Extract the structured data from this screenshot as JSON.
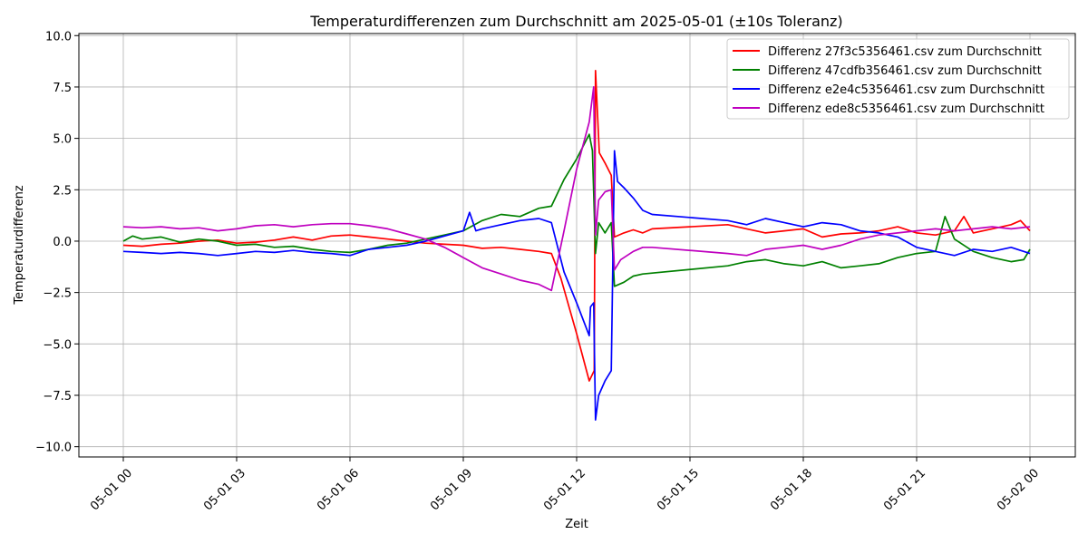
{
  "chart_data": {
    "type": "line",
    "title": "Temperaturdifferenzen zum Durchschnitt am 2025-05-01 (±10s Toleranz)",
    "xlabel": "Zeit",
    "ylabel": "Temperaturdifferenz",
    "xlim": [
      "2025-05-01 00:00",
      "2025-05-02 00:00"
    ],
    "ylim": [
      -10.5,
      10.1
    ],
    "x_ticks": [
      {
        "value": "2025-05-01 00:00",
        "label": "05-01 00"
      },
      {
        "value": "2025-05-01 03:00",
        "label": "05-01 03"
      },
      {
        "value": "2025-05-01 06:00",
        "label": "05-01 06"
      },
      {
        "value": "2025-05-01 09:00",
        "label": "05-01 09"
      },
      {
        "value": "2025-05-01 12:00",
        "label": "05-01 12"
      },
      {
        "value": "2025-05-01 15:00",
        "label": "05-01 15"
      },
      {
        "value": "2025-05-01 18:00",
        "label": "05-01 18"
      },
      {
        "value": "2025-05-01 21:00",
        "label": "05-01 21"
      },
      {
        "value": "2025-05-02 00:00",
        "label": "05-02 00"
      }
    ],
    "y_ticks": [
      {
        "value": -10.0,
        "label": "−10.0"
      },
      {
        "value": -7.5,
        "label": "−7.5"
      },
      {
        "value": -5.0,
        "label": "−5.0"
      },
      {
        "value": -2.5,
        "label": "−2.5"
      },
      {
        "value": 0.0,
        "label": "0.0"
      },
      {
        "value": 2.5,
        "label": "2.5"
      },
      {
        "value": 5.0,
        "label": "5.0"
      },
      {
        "value": 7.5,
        "label": "7.5"
      },
      {
        "value": 10.0,
        "label": "10.0"
      }
    ],
    "grid": true,
    "legend_position": "top-right",
    "series": [
      {
        "name": "Differenz 27f3c5356461.csv zum Durchschnitt",
        "color": "#ff0000",
        "points": [
          [
            "2025-05-01 00:00",
            -0.2
          ],
          [
            "2025-05-01 00:30",
            -0.25
          ],
          [
            "2025-05-01 01:00",
            -0.15
          ],
          [
            "2025-05-01 01:30",
            -0.1
          ],
          [
            "2025-05-01 02:00",
            0.0
          ],
          [
            "2025-05-01 02:30",
            0.05
          ],
          [
            "2025-05-01 03:00",
            -0.1
          ],
          [
            "2025-05-01 03:30",
            -0.05
          ],
          [
            "2025-05-01 04:00",
            0.05
          ],
          [
            "2025-05-01 04:30",
            0.2
          ],
          [
            "2025-05-01 05:00",
            0.05
          ],
          [
            "2025-05-01 05:30",
            0.25
          ],
          [
            "2025-05-01 06:00",
            0.3
          ],
          [
            "2025-05-01 06:30",
            0.2
          ],
          [
            "2025-05-01 07:00",
            0.1
          ],
          [
            "2025-05-01 07:30",
            0.0
          ],
          [
            "2025-05-01 08:00",
            -0.1
          ],
          [
            "2025-05-01 08:30",
            -0.15
          ],
          [
            "2025-05-01 09:00",
            -0.2
          ],
          [
            "2025-05-01 09:30",
            -0.35
          ],
          [
            "2025-05-01 10:00",
            -0.3
          ],
          [
            "2025-05-01 10:30",
            -0.4
          ],
          [
            "2025-05-01 11:00",
            -0.5
          ],
          [
            "2025-05-01 11:20",
            -0.6
          ],
          [
            "2025-05-01 11:35",
            -1.8
          ],
          [
            "2025-05-01 12:00",
            -4.5
          ],
          [
            "2025-05-01 12:20",
            -6.8
          ],
          [
            "2025-05-01 12:28",
            -6.3
          ],
          [
            "2025-05-01 12:30",
            8.3
          ],
          [
            "2025-05-01 12:36",
            4.3
          ],
          [
            "2025-05-01 12:45",
            3.8
          ],
          [
            "2025-05-01 12:55",
            3.2
          ],
          [
            "2025-05-01 13:00",
            0.2
          ],
          [
            "2025-05-01 13:15",
            0.4
          ],
          [
            "2025-05-01 13:30",
            0.55
          ],
          [
            "2025-05-01 13:45",
            0.4
          ],
          [
            "2025-05-01 14:00",
            0.6
          ],
          [
            "2025-05-01 16:00",
            0.8
          ],
          [
            "2025-05-01 16:30",
            0.6
          ],
          [
            "2025-05-01 17:00",
            0.4
          ],
          [
            "2025-05-01 17:30",
            0.5
          ],
          [
            "2025-05-01 18:00",
            0.6
          ],
          [
            "2025-05-01 18:30",
            0.2
          ],
          [
            "2025-05-01 19:00",
            0.35
          ],
          [
            "2025-05-01 19:30",
            0.4
          ],
          [
            "2025-05-01 20:00",
            0.5
          ],
          [
            "2025-05-01 20:30",
            0.7
          ],
          [
            "2025-05-01 21:00",
            0.4
          ],
          [
            "2025-05-01 21:30",
            0.3
          ],
          [
            "2025-05-01 22:00",
            0.5
          ],
          [
            "2025-05-01 22:15",
            1.2
          ],
          [
            "2025-05-01 22:30",
            0.4
          ],
          [
            "2025-05-01 23:00",
            0.6
          ],
          [
            "2025-05-01 23:30",
            0.8
          ],
          [
            "2025-05-01 23:45",
            1.0
          ],
          [
            "2025-05-02 00:00",
            0.5
          ]
        ]
      },
      {
        "name": "Differenz 47cdfb356461.csv zum Durchschnitt",
        "color": "#008000",
        "points": [
          [
            "2025-05-01 00:00",
            0.0
          ],
          [
            "2025-05-01 00:15",
            0.25
          ],
          [
            "2025-05-01 00:30",
            0.1
          ],
          [
            "2025-05-01 01:00",
            0.2
          ],
          [
            "2025-05-01 01:30",
            -0.05
          ],
          [
            "2025-05-01 02:00",
            0.1
          ],
          [
            "2025-05-01 02:30",
            0.0
          ],
          [
            "2025-05-01 03:00",
            -0.2
          ],
          [
            "2025-05-01 03:30",
            -0.15
          ],
          [
            "2025-05-01 04:00",
            -0.3
          ],
          [
            "2025-05-01 04:30",
            -0.25
          ],
          [
            "2025-05-01 05:00",
            -0.4
          ],
          [
            "2025-05-01 05:30",
            -0.5
          ],
          [
            "2025-05-01 06:00",
            -0.55
          ],
          [
            "2025-05-01 06:30",
            -0.4
          ],
          [
            "2025-05-01 07:00",
            -0.2
          ],
          [
            "2025-05-01 07:30",
            -0.1
          ],
          [
            "2025-05-01 08:00",
            0.1
          ],
          [
            "2025-05-01 08:30",
            0.3
          ],
          [
            "2025-05-01 09:00",
            0.5
          ],
          [
            "2025-05-01 09:30",
            1.0
          ],
          [
            "2025-05-01 10:00",
            1.3
          ],
          [
            "2025-05-01 10:30",
            1.2
          ],
          [
            "2025-05-01 11:00",
            1.6
          ],
          [
            "2025-05-01 11:20",
            1.7
          ],
          [
            "2025-05-01 11:40",
            3.0
          ],
          [
            "2025-05-01 12:00",
            4.0
          ],
          [
            "2025-05-01 12:20",
            5.2
          ],
          [
            "2025-05-01 12:25",
            4.4
          ],
          [
            "2025-05-01 12:30",
            -0.6
          ],
          [
            "2025-05-01 12:35",
            0.9
          ],
          [
            "2025-05-01 12:45",
            0.4
          ],
          [
            "2025-05-01 12:55",
            0.9
          ],
          [
            "2025-05-01 13:00",
            -2.2
          ],
          [
            "2025-05-01 13:15",
            -2.0
          ],
          [
            "2025-05-01 13:30",
            -1.7
          ],
          [
            "2025-05-01 13:45",
            -1.6
          ],
          [
            "2025-05-01 16:00",
            -1.2
          ],
          [
            "2025-05-01 16:30",
            -1.0
          ],
          [
            "2025-05-01 17:00",
            -0.9
          ],
          [
            "2025-05-01 17:30",
            -1.1
          ],
          [
            "2025-05-01 18:00",
            -1.2
          ],
          [
            "2025-05-01 18:30",
            -1.0
          ],
          [
            "2025-05-01 19:00",
            -1.3
          ],
          [
            "2025-05-01 19:30",
            -1.2
          ],
          [
            "2025-05-01 20:00",
            -1.1
          ],
          [
            "2025-05-01 20:30",
            -0.8
          ],
          [
            "2025-05-01 21:00",
            -0.6
          ],
          [
            "2025-05-01 21:30",
            -0.5
          ],
          [
            "2025-05-01 21:45",
            1.2
          ],
          [
            "2025-05-01 22:00",
            0.1
          ],
          [
            "2025-05-01 22:30",
            -0.5
          ],
          [
            "2025-05-01 23:00",
            -0.8
          ],
          [
            "2025-05-01 23:30",
            -1.0
          ],
          [
            "2025-05-01 23:50",
            -0.9
          ],
          [
            "2025-05-02 00:00",
            -0.4
          ]
        ]
      },
      {
        "name": "Differenz e2e4c5356461.csv zum Durchschnitt",
        "color": "#0000ff",
        "points": [
          [
            "2025-05-01 00:00",
            -0.5
          ],
          [
            "2025-05-01 00:30",
            -0.55
          ],
          [
            "2025-05-01 01:00",
            -0.6
          ],
          [
            "2025-05-01 01:30",
            -0.55
          ],
          [
            "2025-05-01 02:00",
            -0.6
          ],
          [
            "2025-05-01 02:30",
            -0.7
          ],
          [
            "2025-05-01 03:00",
            -0.6
          ],
          [
            "2025-05-01 03:30",
            -0.5
          ],
          [
            "2025-05-01 04:00",
            -0.55
          ],
          [
            "2025-05-01 04:30",
            -0.45
          ],
          [
            "2025-05-01 05:00",
            -0.55
          ],
          [
            "2025-05-01 05:30",
            -0.6
          ],
          [
            "2025-05-01 06:00",
            -0.7
          ],
          [
            "2025-05-01 06:30",
            -0.4
          ],
          [
            "2025-05-01 07:00",
            -0.3
          ],
          [
            "2025-05-01 07:30",
            -0.2
          ],
          [
            "2025-05-01 08:00",
            0.0
          ],
          [
            "2025-05-01 08:30",
            0.25
          ],
          [
            "2025-05-01 09:00",
            0.5
          ],
          [
            "2025-05-01 09:10",
            1.4
          ],
          [
            "2025-05-01 09:20",
            0.5
          ],
          [
            "2025-05-01 09:30",
            0.6
          ],
          [
            "2025-05-01 10:00",
            0.8
          ],
          [
            "2025-05-01 10:30",
            1.0
          ],
          [
            "2025-05-01 11:00",
            1.1
          ],
          [
            "2025-05-01 11:20",
            0.9
          ],
          [
            "2025-05-01 11:40",
            -1.5
          ],
          [
            "2025-05-01 12:00",
            -3.0
          ],
          [
            "2025-05-01 12:20",
            -4.6
          ],
          [
            "2025-05-01 12:22",
            -3.2
          ],
          [
            "2025-05-01 12:27",
            -3.0
          ],
          [
            "2025-05-01 12:30",
            -8.7
          ],
          [
            "2025-05-01 12:35",
            -7.5
          ],
          [
            "2025-05-01 12:45",
            -6.8
          ],
          [
            "2025-05-01 12:55",
            -6.3
          ],
          [
            "2025-05-01 13:00",
            4.4
          ],
          [
            "2025-05-01 13:05",
            2.9
          ],
          [
            "2025-05-01 13:15",
            2.6
          ],
          [
            "2025-05-01 13:30",
            2.1
          ],
          [
            "2025-05-01 13:45",
            1.5
          ],
          [
            "2025-05-01 14:00",
            1.3
          ],
          [
            "2025-05-01 16:00",
            1.0
          ],
          [
            "2025-05-01 16:30",
            0.8
          ],
          [
            "2025-05-01 17:00",
            1.1
          ],
          [
            "2025-05-01 17:30",
            0.9
          ],
          [
            "2025-05-01 18:00",
            0.7
          ],
          [
            "2025-05-01 18:30",
            0.9
          ],
          [
            "2025-05-01 19:00",
            0.8
          ],
          [
            "2025-05-01 19:30",
            0.5
          ],
          [
            "2025-05-01 20:00",
            0.4
          ],
          [
            "2025-05-01 20:30",
            0.2
          ],
          [
            "2025-05-01 21:00",
            -0.3
          ],
          [
            "2025-05-01 21:30",
            -0.5
          ],
          [
            "2025-05-01 22:00",
            -0.7
          ],
          [
            "2025-05-01 22:30",
            -0.4
          ],
          [
            "2025-05-01 23:00",
            -0.5
          ],
          [
            "2025-05-01 23:30",
            -0.3
          ],
          [
            "2025-05-02 00:00",
            -0.6
          ]
        ]
      },
      {
        "name": "Differenz ede8c5356461.csv zum Durchschnitt",
        "color": "#bf00bf",
        "points": [
          [
            "2025-05-01 00:00",
            0.7
          ],
          [
            "2025-05-01 00:30",
            0.65
          ],
          [
            "2025-05-01 01:00",
            0.7
          ],
          [
            "2025-05-01 01:30",
            0.6
          ],
          [
            "2025-05-01 02:00",
            0.65
          ],
          [
            "2025-05-01 02:30",
            0.5
          ],
          [
            "2025-05-01 03:00",
            0.6
          ],
          [
            "2025-05-01 03:30",
            0.75
          ],
          [
            "2025-05-01 04:00",
            0.8
          ],
          [
            "2025-05-01 04:30",
            0.7
          ],
          [
            "2025-05-01 05:00",
            0.8
          ],
          [
            "2025-05-01 05:30",
            0.85
          ],
          [
            "2025-05-01 06:00",
            0.85
          ],
          [
            "2025-05-01 06:30",
            0.75
          ],
          [
            "2025-05-01 07:00",
            0.6
          ],
          [
            "2025-05-01 07:30",
            0.35
          ],
          [
            "2025-05-01 08:00",
            0.1
          ],
          [
            "2025-05-01 08:30",
            -0.3
          ],
          [
            "2025-05-01 09:00",
            -0.8
          ],
          [
            "2025-05-01 09:30",
            -1.3
          ],
          [
            "2025-05-01 10:00",
            -1.6
          ],
          [
            "2025-05-01 10:30",
            -1.9
          ],
          [
            "2025-05-01 11:00",
            -2.1
          ],
          [
            "2025-05-01 11:20",
            -2.4
          ],
          [
            "2025-05-01 11:40",
            0.5
          ],
          [
            "2025-05-01 12:00",
            3.5
          ],
          [
            "2025-05-01 12:20",
            5.8
          ],
          [
            "2025-05-01 12:27",
            7.5
          ],
          [
            "2025-05-01 12:30",
            0.3
          ],
          [
            "2025-05-01 12:35",
            2.0
          ],
          [
            "2025-05-01 12:45",
            2.4
          ],
          [
            "2025-05-01 12:55",
            2.5
          ],
          [
            "2025-05-01 13:00",
            -1.4
          ],
          [
            "2025-05-01 13:10",
            -0.9
          ],
          [
            "2025-05-01 13:30",
            -0.5
          ],
          [
            "2025-05-01 13:45",
            -0.3
          ],
          [
            "2025-05-01 14:00",
            -0.3
          ],
          [
            "2025-05-01 16:00",
            -0.6
          ],
          [
            "2025-05-01 16:30",
            -0.7
          ],
          [
            "2025-05-01 17:00",
            -0.4
          ],
          [
            "2025-05-01 17:30",
            -0.3
          ],
          [
            "2025-05-01 18:00",
            -0.2
          ],
          [
            "2025-05-01 18:30",
            -0.4
          ],
          [
            "2025-05-01 19:00",
            -0.2
          ],
          [
            "2025-05-01 19:30",
            0.1
          ],
          [
            "2025-05-01 20:00",
            0.3
          ],
          [
            "2025-05-01 20:30",
            0.4
          ],
          [
            "2025-05-01 21:00",
            0.5
          ],
          [
            "2025-05-01 21:30",
            0.6
          ],
          [
            "2025-05-01 22:00",
            0.5
          ],
          [
            "2025-05-01 22:30",
            0.6
          ],
          [
            "2025-05-01 23:00",
            0.7
          ],
          [
            "2025-05-01 23:30",
            0.6
          ],
          [
            "2025-05-02 00:00",
            0.7
          ]
        ]
      }
    ]
  }
}
